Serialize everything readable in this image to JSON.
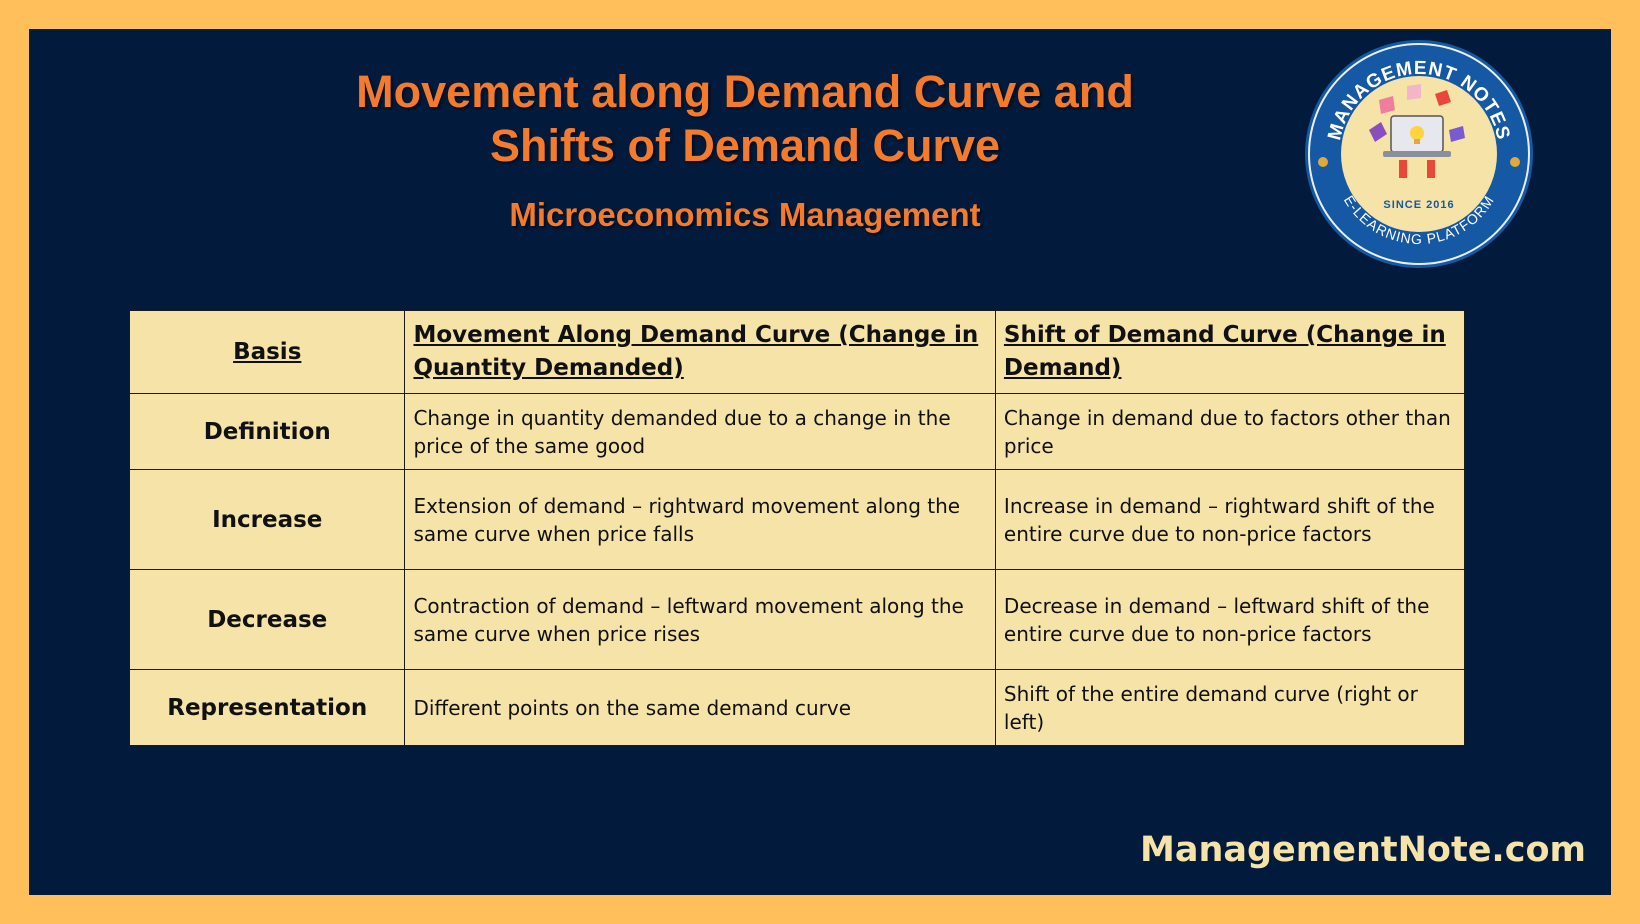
{
  "header": {
    "title_line1": "Movement along Demand Curve and",
    "title_line2": "Shifts of Demand Curve",
    "subtitle": "Microeconomics Management"
  },
  "logo": {
    "top_text": "MANAGEMENT NOTES",
    "since": "SINCE 2016",
    "bottom_text": "E-LEARNING PLATFORM"
  },
  "table": {
    "headers": [
      "Basis",
      "Movement Along Demand Curve (Change in Quantity Demanded)",
      "Shift of Demand Curve (Change in Demand)"
    ],
    "rows": [
      {
        "basis": "Definition",
        "movement": "Change in quantity demanded due to a change in the price of the same good",
        "shift": "Change in demand due to factors other than price"
      },
      {
        "basis": "Increase",
        "movement": "Extension of demand – rightward movement along the same curve when price falls",
        "shift": "Increase in demand – rightward shift of the entire curve due to non-price factors"
      },
      {
        "basis": "Decrease",
        "movement": "Contraction of demand – leftward movement along the same curve when price rises",
        "shift": "Decrease in demand – leftward shift of the entire curve due to non-price factors"
      },
      {
        "basis": "Representation",
        "movement": "Different points on the same demand curve",
        "shift": "Shift of the entire demand curve (right or left)"
      }
    ]
  },
  "footer": {
    "site": "ManagementNote.com"
  },
  "colors": {
    "border": "#ffbf5a",
    "panel": "#021b3c",
    "accent": "#f47b2b",
    "table_bg": "#f6e3a8"
  }
}
